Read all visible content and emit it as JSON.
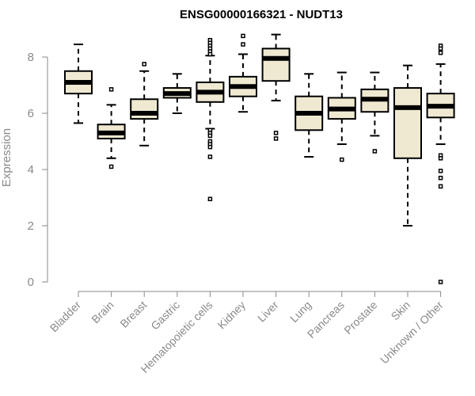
{
  "chart_data": {
    "type": "box",
    "title": "ENSG00000166321 - NUDT13",
    "xlabel": "",
    "ylabel": "Expression",
    "ylim": [
      0,
      8.8
    ],
    "yticks": [
      0,
      2,
      4,
      6,
      8
    ],
    "categories": [
      "Bladder",
      "Brain",
      "Breast",
      "Gastric",
      "Hematopoietic cells",
      "Kidney",
      "Liver",
      "Lung",
      "Pancreas",
      "Prostate",
      "Skin",
      "Unknown / Other"
    ],
    "boxes": [
      {
        "category": "Bladder",
        "whisker_low": 5.65,
        "q1": 6.7,
        "median": 7.1,
        "q3": 7.5,
        "whisker_high": 8.45,
        "outliers": []
      },
      {
        "category": "Brain",
        "whisker_low": 4.4,
        "q1": 5.1,
        "median": 5.3,
        "q3": 5.6,
        "whisker_high": 6.3,
        "outliers": [
          6.85,
          4.1
        ]
      },
      {
        "category": "Breast",
        "whisker_low": 4.85,
        "q1": 5.8,
        "median": 6.0,
        "q3": 6.5,
        "whisker_high": 7.5,
        "outliers": [
          7.75
        ]
      },
      {
        "category": "Gastric",
        "whisker_low": 6.0,
        "q1": 6.55,
        "median": 6.7,
        "q3": 6.9,
        "whisker_high": 7.4,
        "outliers": []
      },
      {
        "category": "Hematopoietic cells",
        "whisker_low": 5.45,
        "q1": 6.4,
        "median": 6.75,
        "q3": 7.1,
        "whisker_high": 8.05,
        "outliers": [
          8.6,
          8.5,
          8.4,
          8.3,
          8.2,
          8.1,
          5.4,
          5.3,
          5.2,
          5.0,
          4.9,
          4.8,
          4.45,
          2.95
        ]
      },
      {
        "category": "Kidney",
        "whisker_low": 6.05,
        "q1": 6.6,
        "median": 6.95,
        "q3": 7.3,
        "whisker_high": 8.1,
        "outliers": [
          8.75,
          8.45
        ]
      },
      {
        "category": "Liver",
        "whisker_low": 6.45,
        "q1": 7.15,
        "median": 7.95,
        "q3": 8.3,
        "whisker_high": 8.8,
        "outliers": [
          5.3,
          5.1
        ]
      },
      {
        "category": "Lung",
        "whisker_low": 4.45,
        "q1": 5.4,
        "median": 6.0,
        "q3": 6.6,
        "whisker_high": 7.4,
        "outliers": []
      },
      {
        "category": "Pancreas",
        "whisker_low": 4.9,
        "q1": 5.8,
        "median": 6.15,
        "q3": 6.55,
        "whisker_high": 7.45,
        "outliers": [
          4.35
        ]
      },
      {
        "category": "Prostate",
        "whisker_low": 5.2,
        "q1": 6.05,
        "median": 6.5,
        "q3": 6.85,
        "whisker_high": 7.45,
        "outliers": [
          4.65
        ]
      },
      {
        "category": "Skin",
        "whisker_low": 2.0,
        "q1": 4.4,
        "median": 6.2,
        "q3": 6.9,
        "whisker_high": 7.7,
        "outliers": []
      },
      {
        "category": "Unknown / Other",
        "whisker_low": 4.9,
        "q1": 5.85,
        "median": 6.25,
        "q3": 6.7,
        "whisker_high": 7.75,
        "outliers": [
          8.4,
          8.3,
          8.15,
          4.5,
          4.4,
          3.95,
          3.7,
          3.4,
          0.0
        ]
      }
    ],
    "colors": {
      "box_fill": "#efe9d2",
      "box_stroke": "#000000",
      "axis": "#8a8a8a"
    },
    "grid": false,
    "legend": "none"
  }
}
